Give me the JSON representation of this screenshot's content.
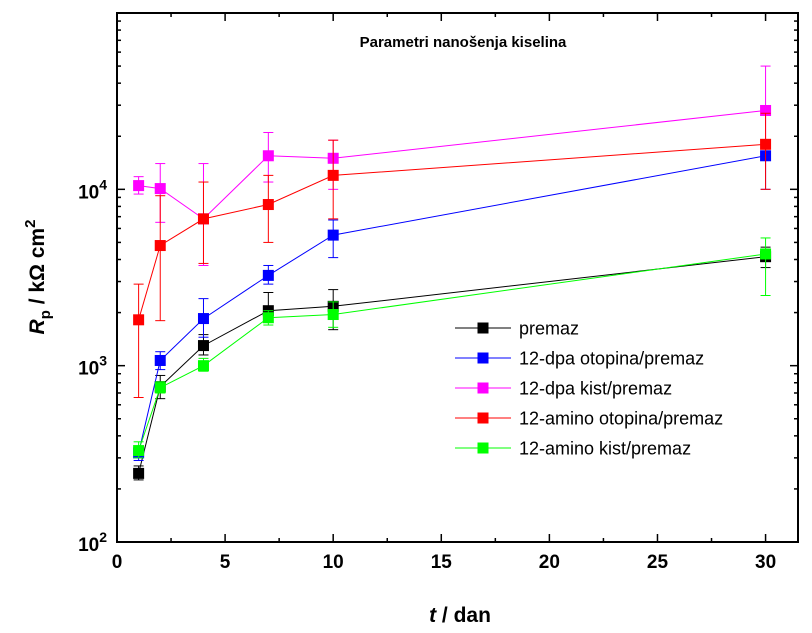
{
  "chart_data": {
    "type": "line",
    "title": "Parametri nanošenja kiselina",
    "xlabel": {
      "italic": "t",
      "rest": " / dan"
    },
    "ylabel": {
      "italic": "R",
      "sub": "p",
      "rest": " / kΩ cm",
      "sup": "2"
    },
    "x_scale": "linear",
    "y_scale": "log",
    "xlim": [
      0,
      31.5
    ],
    "ylim": [
      100,
      100000
    ],
    "x_ticks": [
      0,
      5,
      10,
      15,
      20,
      25,
      30
    ],
    "y_ticks": [
      100,
      1000,
      10000
    ],
    "y_tick_labels": [
      {
        "base": "10",
        "exp": "2"
      },
      {
        "base": "10",
        "exp": "3"
      },
      {
        "base": "10",
        "exp": "4"
      }
    ],
    "grid": false,
    "legend_position": "bottom-right",
    "series": [
      {
        "name": "premaz",
        "color": "#000000",
        "x": [
          1,
          2,
          4,
          7,
          10,
          30
        ],
        "y": [
          245,
          760,
          1300,
          2050,
          2170,
          4150
        ],
        "err_low": [
          225,
          650,
          1150,
          1850,
          1600,
          3600
        ],
        "err_high": [
          270,
          880,
          1500,
          2600,
          2700,
          4700
        ]
      },
      {
        "name": "12-dpa otopina/premaz",
        "color": "#0000ff",
        "x": [
          1,
          2,
          4,
          7,
          10,
          30
        ],
        "y": [
          320,
          1070,
          1850,
          3250,
          5500,
          15500
        ],
        "err_low": [
          290,
          950,
          1450,
          2900,
          4100,
          10000
        ],
        "err_high": [
          350,
          1200,
          2400,
          3700,
          6700,
          19000
        ]
      },
      {
        "name": "12-dpa kist/premaz",
        "color": "#ff00ff",
        "x": [
          1,
          2,
          4,
          7,
          10,
          30
        ],
        "y": [
          10500,
          10100,
          6800,
          15500,
          15000,
          28000
        ],
        "err_low": [
          9400,
          6500,
          3700,
          11000,
          10000,
          18000
        ],
        "err_high": [
          11800,
          14000,
          14000,
          21000,
          19000,
          50000
        ]
      },
      {
        "name": "12-amino otopina/premaz",
        "color": "#ff0000",
        "x": [
          1,
          2,
          4,
          7,
          10,
          30
        ],
        "y": [
          1820,
          4800,
          6800,
          8200,
          12000,
          18000
        ],
        "err_low": [
          660,
          1800,
          3800,
          5000,
          6800,
          10000
        ],
        "err_high": [
          2900,
          9200,
          11000,
          12000,
          19000,
          27000
        ]
      },
      {
        "name": "12-amino kist/premaz",
        "color": "#00ff00",
        "x": [
          1,
          2,
          4,
          7,
          10,
          30
        ],
        "y": [
          330,
          750,
          1000,
          1870,
          1950,
          4300
        ],
        "err_low": [
          300,
          700,
          930,
          1700,
          1650,
          2500
        ],
        "err_high": [
          370,
          810,
          1100,
          2050,
          2300,
          5300
        ]
      }
    ]
  }
}
